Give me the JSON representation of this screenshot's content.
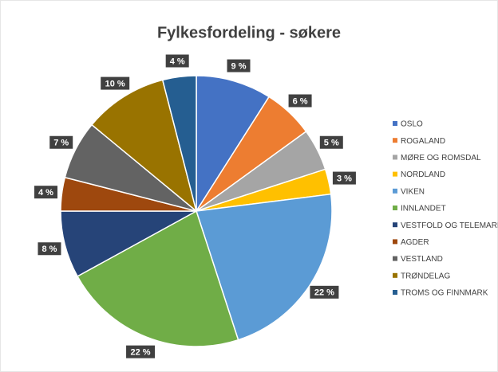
{
  "chart_data": {
    "type": "pie",
    "title": "Fylkesfordeling - søkere",
    "categories": [
      "OSLO",
      "ROGALAND",
      "MØRE OG ROMSDAL",
      "NORDLAND",
      "VIKEN",
      "INNLANDET",
      "VESTFOLD OG TELEMARK",
      "AGDER",
      "VESTLAND",
      "TRØNDELAG",
      "TROMS OG FINNMARK"
    ],
    "values": [
      9,
      6,
      5,
      3,
      22,
      22,
      8,
      4,
      7,
      10,
      4
    ],
    "value_labels": [
      "9 %",
      "6 %",
      "5 %",
      "3 %",
      "22 %",
      "22 %",
      "8 %",
      "4 %",
      "7 %",
      "10 %",
      "4 %"
    ],
    "colors": [
      "#4472c4",
      "#ed7d31",
      "#a5a5a5",
      "#ffc000",
      "#5b9bd5",
      "#70ad47",
      "#264478",
      "#9e480e",
      "#636363",
      "#997300",
      "#255e91"
    ],
    "legend": "right"
  }
}
